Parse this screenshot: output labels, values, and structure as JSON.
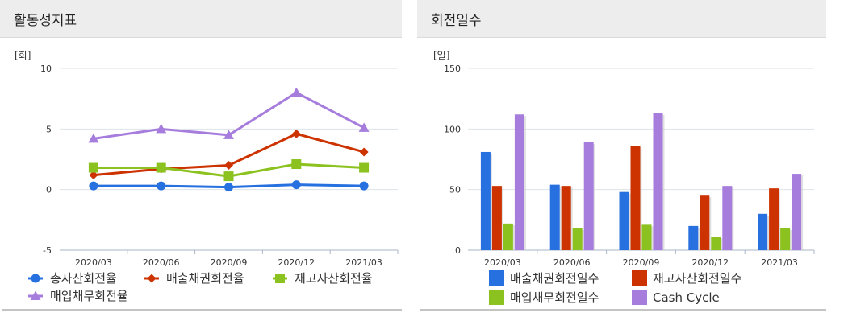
{
  "panels": {
    "left_title": "활동성지표",
    "right_title": "회전일수"
  },
  "chart_data": [
    {
      "type": "line",
      "unit": "[회]",
      "categories": [
        "2020/03",
        "2020/06",
        "2020/09",
        "2020/12",
        "2021/03"
      ],
      "ylim": [
        -5,
        10
      ],
      "yticks": [
        "10",
        "5",
        "0",
        "-5"
      ],
      "grid": true,
      "legend_position": "bottom",
      "series": [
        {
          "name": "총자산회전율",
          "color": "#2670e0",
          "marker": "circle",
          "values": [
            0.3,
            0.3,
            0.2,
            0.4,
            0.3
          ]
        },
        {
          "name": "매출채권회전율",
          "color": "#cc3300",
          "marker": "diamond",
          "values": [
            1.2,
            1.7,
            2.0,
            4.6,
            3.1
          ]
        },
        {
          "name": "재고자산회전율",
          "color": "#8cc220",
          "marker": "square",
          "values": [
            1.8,
            1.8,
            1.1,
            2.1,
            1.8
          ]
        },
        {
          "name": "매입채무회전율",
          "color": "#a67ddd",
          "marker": "triangle",
          "values": [
            4.2,
            5.0,
            4.5,
            8.0,
            5.1
          ]
        }
      ]
    },
    {
      "type": "bar",
      "unit": "[일]",
      "categories": [
        "2020/03",
        "2020/06",
        "2020/09",
        "2020/12",
        "2021/03"
      ],
      "ylim": [
        0,
        150
      ],
      "yticks": [
        "150",
        "100",
        "50",
        "0"
      ],
      "grid": true,
      "legend_position": "bottom",
      "series": [
        {
          "name": "매출채권회전일수",
          "color": "#2670e0",
          "values": [
            81,
            54,
            48,
            20,
            30
          ]
        },
        {
          "name": "재고자산회전일수",
          "color": "#cc3300",
          "values": [
            53,
            53,
            86,
            45,
            51
          ]
        },
        {
          "name": "매입채무회전일수",
          "color": "#8cc220",
          "values": [
            22,
            18,
            21,
            11,
            18
          ]
        },
        {
          "name": "Cash Cycle",
          "color": "#a67ddd",
          "values": [
            112,
            89,
            113,
            53,
            63
          ]
        }
      ]
    }
  ]
}
